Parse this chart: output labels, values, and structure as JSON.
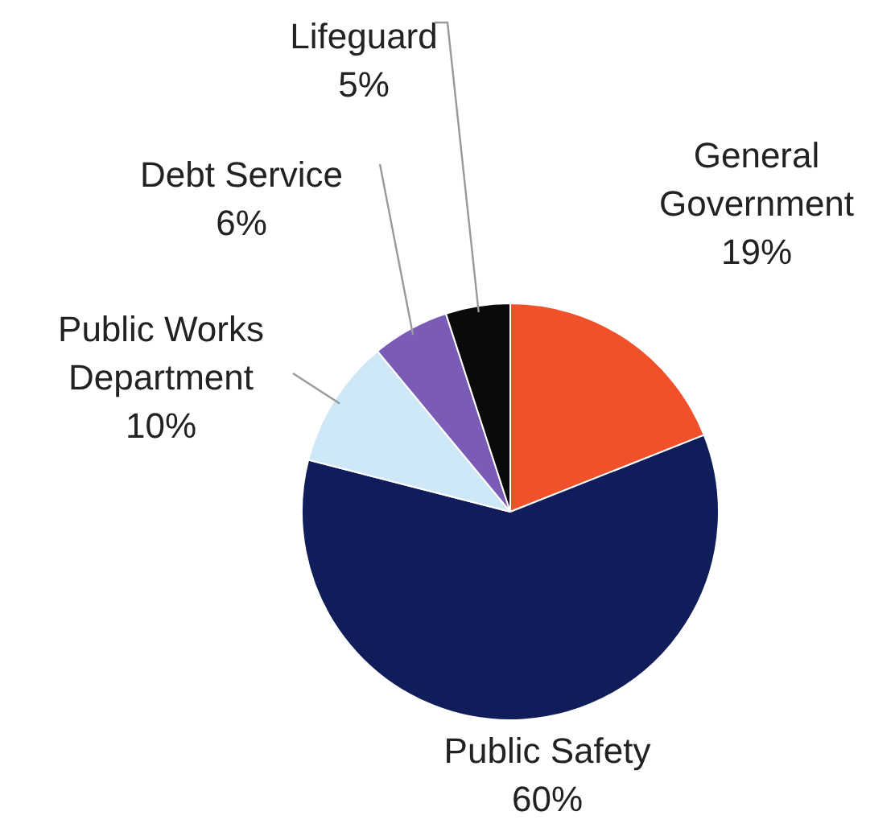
{
  "chart_data": {
    "type": "pie",
    "categories": [
      "General Government",
      "Public Safety",
      "Public Works Department",
      "Debt Service",
      "Lifeguard"
    ],
    "values": [
      19,
      60,
      10,
      6,
      5
    ],
    "value_labels": [
      "19%",
      "60%",
      "10%",
      "6%",
      "5%"
    ],
    "colors": [
      "#f0502a",
      "#101d5a",
      "#cfe8f8",
      "#7a5cb6",
      "#0a0a0a"
    ]
  }
}
